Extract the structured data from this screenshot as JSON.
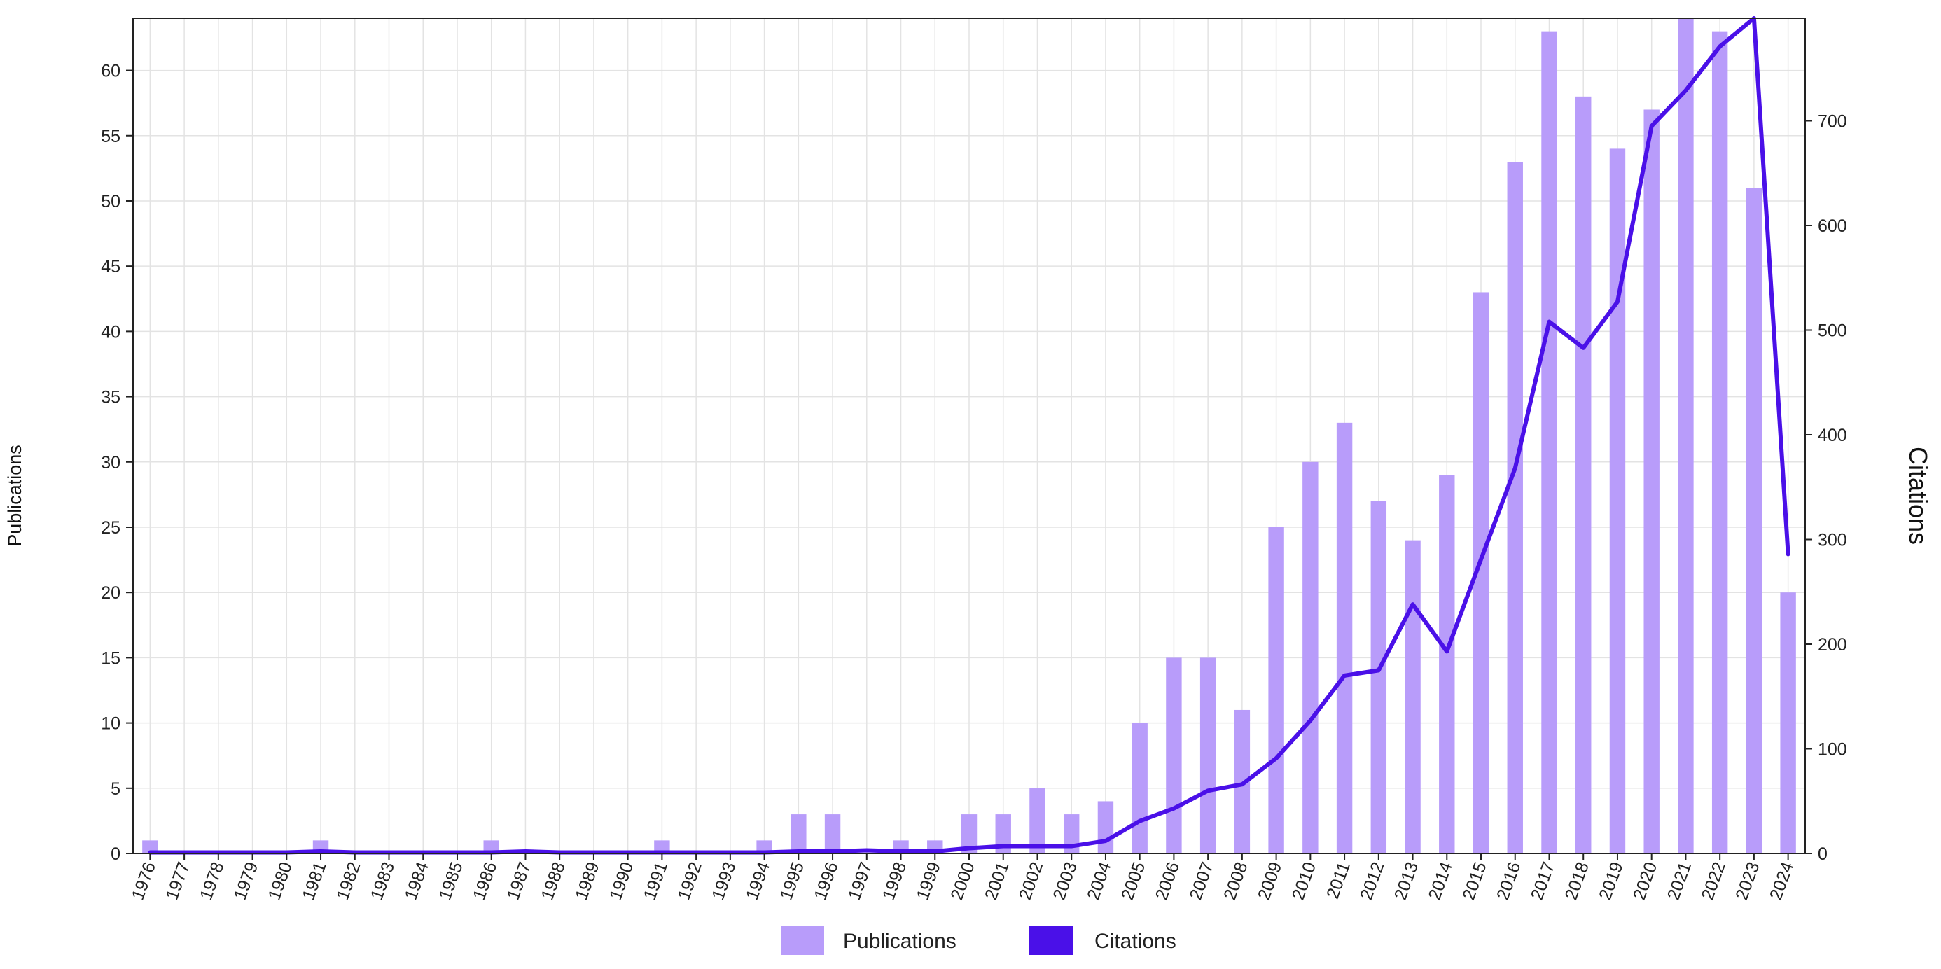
{
  "chart_data": {
    "type": "bar+line",
    "categories": [
      "1976",
      "1977",
      "1978",
      "1979",
      "1980",
      "1981",
      "1982",
      "1983",
      "1984",
      "1985",
      "1986",
      "1987",
      "1988",
      "1989",
      "1990",
      "1991",
      "1992",
      "1993",
      "1994",
      "1995",
      "1996",
      "1997",
      "1998",
      "1999",
      "2000",
      "2001",
      "2002",
      "2003",
      "2004",
      "2005",
      "2006",
      "2007",
      "2008",
      "2009",
      "2010",
      "2011",
      "2012",
      "2013",
      "2014",
      "2015",
      "2016",
      "2017",
      "2018",
      "2019",
      "2020",
      "2021",
      "2022",
      "2023",
      "2024"
    ],
    "series": [
      {
        "name": "Publications",
        "type": "bar",
        "axis": "left",
        "color": "#b89cfa",
        "values": [
          1,
          0,
          0,
          0,
          0,
          1,
          0,
          0,
          0,
          0,
          1,
          0,
          0,
          0,
          0,
          1,
          0,
          0,
          1,
          3,
          3,
          0,
          1,
          1,
          3,
          3,
          5,
          3,
          4,
          10,
          15,
          15,
          11,
          25,
          30,
          33,
          27,
          24,
          29,
          43,
          53,
          63,
          58,
          54,
          57,
          64,
          63,
          51,
          20
        ]
      },
      {
        "name": "Citations",
        "type": "line",
        "axis": "right",
        "color": "#4a10e8",
        "values": [
          1,
          1,
          1,
          1,
          1,
          2,
          1,
          1,
          1,
          1,
          1,
          2,
          1,
          1,
          1,
          1,
          1,
          1,
          1,
          2,
          2,
          3,
          2,
          2,
          5,
          7,
          7,
          7,
          12,
          31,
          43,
          60,
          66,
          91,
          127,
          170,
          175,
          238,
          193,
          281,
          368,
          508,
          483,
          527,
          695,
          729,
          771,
          798,
          286
        ]
      }
    ],
    "ylabel": "Publications",
    "y2label": "Citations",
    "ylim": [
      0,
      64
    ],
    "y2lim": [
      0,
      798
    ],
    "yticks": [
      0,
      5,
      10,
      15,
      20,
      25,
      30,
      35,
      40,
      45,
      50,
      55,
      60
    ],
    "y2ticks": [
      0,
      100,
      200,
      300,
      400,
      500,
      600,
      700
    ],
    "grid": true,
    "legend_position": "bottom-center"
  }
}
